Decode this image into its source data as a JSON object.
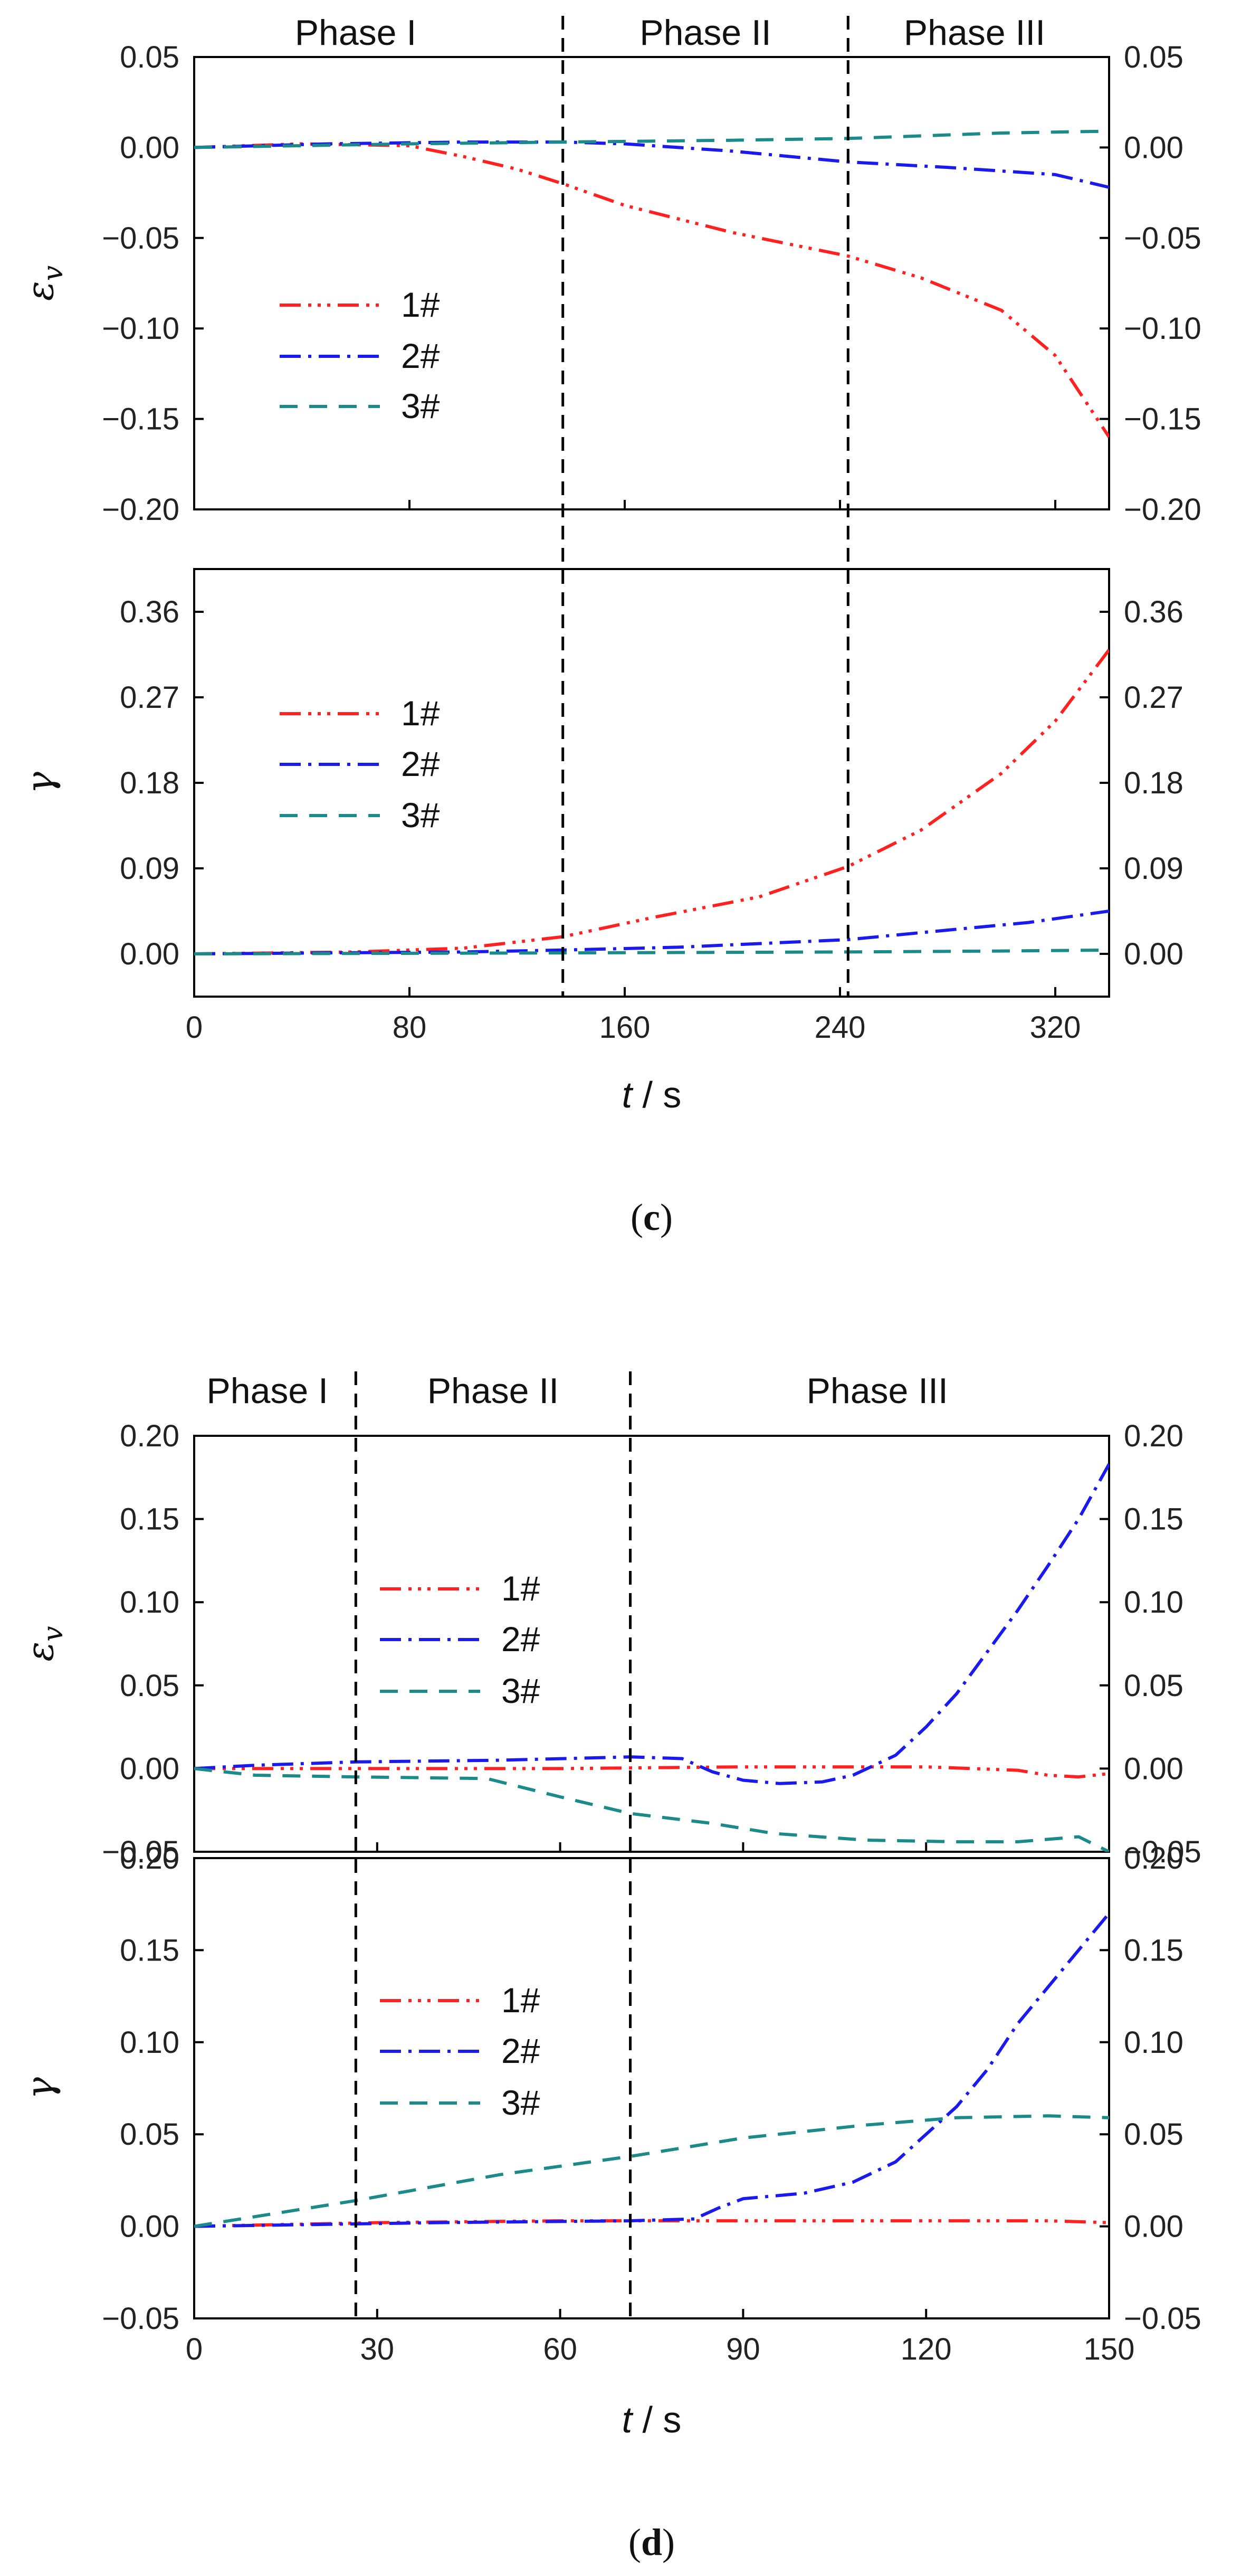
{
  "colors": {
    "s1": "#ff2020",
    "s2": "#1a1aee",
    "s3": "#1a8a8a",
    "axis": "#000000"
  },
  "chart_data": [
    {
      "id": "c",
      "caption": {
        "open": "(",
        "letter": "c",
        "close": ")"
      },
      "type": "line",
      "xlabel_italic": "t",
      "xlabel_unit": " / s",
      "xlim": [
        0,
        340
      ],
      "xticks": [
        0,
        80,
        160,
        240,
        320
      ],
      "xtick_labels": [
        "0",
        "80",
        "160",
        "240",
        "320"
      ],
      "phases": [
        {
          "label": "Phase I",
          "x": 60
        },
        {
          "label": "Phase II",
          "x": 190
        },
        {
          "label": "Phase III",
          "x": 290
        }
      ],
      "dividers": [
        137,
        243
      ],
      "panels": [
        {
          "id": "ev",
          "ylabel": "εv",
          "ylabel_main": "ε",
          "ylabel_sub": "v",
          "ylim": [
            -0.2,
            0.05
          ],
          "yticks": [
            0.05,
            0.0,
            -0.05,
            -0.1,
            -0.15,
            -0.2
          ],
          "ytick_labels": [
            "0.05",
            "0.00",
            "−0.05",
            "−0.10",
            "−0.15",
            "−0.20"
          ],
          "legend": [
            "1#",
            "2#",
            "3#"
          ],
          "series": [
            {
              "name": "1#",
              "x": [
                0,
                40,
                80,
                100,
                120,
                137,
                160,
                200,
                243,
                270,
                300,
                320,
                340
              ],
              "y": [
                0,
                0.002,
                0.001,
                -0.005,
                -0.012,
                -0.02,
                -0.032,
                -0.047,
                -0.06,
                -0.072,
                -0.09,
                -0.115,
                -0.16
              ]
            },
            {
              "name": "2#",
              "x": [
                0,
                50,
                100,
                137,
                160,
                200,
                243,
                280,
                320,
                340
              ],
              "y": [
                0,
                0.002,
                0.003,
                0.003,
                0.002,
                -0.002,
                -0.008,
                -0.011,
                -0.015,
                -0.022
              ]
            },
            {
              "name": "3#",
              "x": [
                0,
                80,
                137,
                200,
                243,
                300,
                340
              ],
              "y": [
                0,
                0.002,
                0.003,
                0.004,
                0.005,
                0.008,
                0.009
              ]
            }
          ]
        },
        {
          "id": "gamma",
          "ylabel": "γ",
          "ylabel_main": "γ",
          "ylabel_sub": "",
          "ylim": [
            -0.045,
            0.405
          ],
          "yticks": [
            0.36,
            0.27,
            0.18,
            0.09,
            0.0
          ],
          "ytick_labels": [
            "0.36",
            "0.27",
            "0.18",
            "0.09",
            "0.00"
          ],
          "legend": [
            "1#",
            "2#",
            "3#"
          ],
          "series": [
            {
              "name": "1#",
              "x": [
                0,
                60,
                100,
                137,
                170,
                210,
                243,
                270,
                300,
                320,
                340
              ],
              "y": [
                0,
                0.002,
                0.006,
                0.018,
                0.038,
                0.06,
                0.092,
                0.13,
                0.19,
                0.245,
                0.32
              ]
            },
            {
              "name": "2#",
              "x": [
                0,
                100,
                137,
                180,
                243,
                280,
                310,
                340
              ],
              "y": [
                0,
                0.002,
                0.004,
                0.007,
                0.015,
                0.025,
                0.033,
                0.045
              ]
            },
            {
              "name": "3#",
              "x": [
                0,
                137,
                243,
                300,
                340
              ],
              "y": [
                0,
                0.001,
                0.002,
                0.003,
                0.004
              ]
            }
          ]
        }
      ]
    },
    {
      "id": "d",
      "caption": {
        "open": "(",
        "letter": "d",
        "close": ")"
      },
      "type": "line",
      "xlabel_italic": "t",
      "xlabel_unit": " / s",
      "xlim": [
        0,
        150
      ],
      "xticks": [
        0,
        30,
        60,
        90,
        120,
        150
      ],
      "xtick_labels": [
        "0",
        "30",
        "60",
        "90",
        "120",
        "150"
      ],
      "phases": [
        {
          "label": "Phase I",
          "x": 12
        },
        {
          "label": "Phase II",
          "x": 49
        },
        {
          "label": "Phase III",
          "x": 112
        }
      ],
      "dividers": [
        26.5,
        71.5
      ],
      "panels": [
        {
          "id": "ev",
          "ylabel": "εv",
          "ylabel_main": "ε",
          "ylabel_sub": "v",
          "ylim": [
            -0.05,
            0.2
          ],
          "yticks": [
            0.2,
            0.15,
            0.1,
            0.05,
            0.0,
            -0.05
          ],
          "ytick_labels": [
            "0.20",
            "0.15",
            "0.10",
            "0.05",
            "0.00",
            "−0.05"
          ],
          "legend": [
            "1#",
            "2#",
            "3#"
          ],
          "series": [
            {
              "name": "1#",
              "x": [
                0,
                30,
                60,
                90,
                120,
                135,
                140,
                145,
                150
              ],
              "y": [
                0,
                0,
                0,
                0.001,
                0.001,
                -0.001,
                -0.004,
                -0.005,
                -0.003
              ]
            },
            {
              "name": "2#",
              "x": [
                0,
                10,
                26.5,
                50,
                71.5,
                80,
                85,
                90,
                96,
                103,
                108,
                115,
                120,
                125,
                130,
                135,
                140,
                145,
                150
              ],
              "y": [
                0,
                0.002,
                0.004,
                0.005,
                0.007,
                0.006,
                -0.002,
                -0.007,
                -0.009,
                -0.008,
                -0.004,
                0.008,
                0.025,
                0.045,
                0.07,
                0.095,
                0.122,
                0.15,
                0.183
              ]
            },
            {
              "name": "3#",
              "x": [
                0,
                10,
                26.5,
                48,
                60,
                71.5,
                85,
                95,
                110,
                125,
                135,
                145,
                150
              ],
              "y": [
                0,
                -0.004,
                -0.005,
                -0.006,
                -0.017,
                -0.027,
                -0.033,
                -0.039,
                -0.043,
                -0.044,
                -0.044,
                -0.041,
                -0.05
              ]
            }
          ]
        },
        {
          "id": "gamma",
          "ylabel": "γ",
          "ylabel_main": "γ",
          "ylabel_sub": "",
          "ylim": [
            -0.05,
            0.2
          ],
          "yticks": [
            0.2,
            0.15,
            0.1,
            0.05,
            0.0,
            -0.05
          ],
          "ytick_labels": [
            "0.20",
            "0.15",
            "0.10",
            "0.05",
            "0.00",
            "−0.05"
          ],
          "legend": [
            "1#",
            "2#",
            "3#"
          ],
          "series": [
            {
              "name": "1#",
              "x": [
                0,
                30,
                60,
                90,
                120,
                140,
                150
              ],
              "y": [
                0,
                0.002,
                0.003,
                0.003,
                0.003,
                0.003,
                0.002
              ]
            },
            {
              "name": "2#",
              "x": [
                0,
                40,
                71.5,
                82,
                86,
                90,
                100,
                108,
                115,
                120,
                125,
                130,
                135,
                140,
                145,
                150
              ],
              "y": [
                0,
                0.002,
                0.003,
                0.004,
                0.01,
                0.015,
                0.018,
                0.024,
                0.035,
                0.05,
                0.065,
                0.085,
                0.11,
                0.13,
                0.15,
                0.17
              ]
            },
            {
              "name": "3#",
              "x": [
                0,
                26.5,
                50,
                71.5,
                90,
                110,
                125,
                140,
                150
              ],
              "y": [
                0,
                0.014,
                0.028,
                0.038,
                0.048,
                0.055,
                0.059,
                0.06,
                0.059
              ]
            }
          ]
        }
      ]
    }
  ]
}
